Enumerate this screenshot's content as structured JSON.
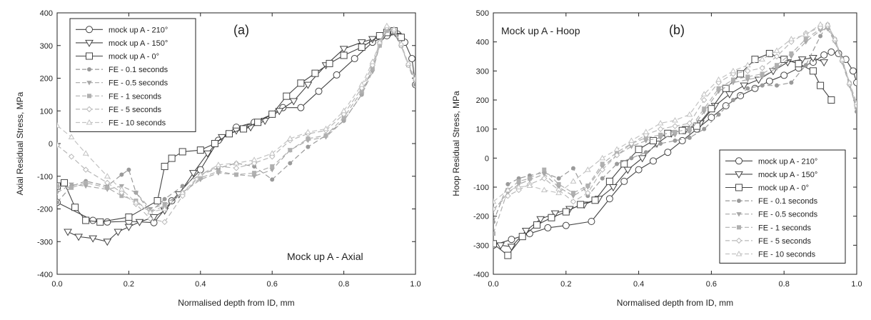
{
  "chart_data": [
    {
      "type": "line",
      "panel_label": "(a)",
      "annotation": "Mock up A - Axial",
      "xlabel": "Normalised depth from ID, mm",
      "ylabel": "Axial Residual Stress, MPa",
      "xlim": [
        0.0,
        1.0
      ],
      "ylim": [
        -400,
        400
      ],
      "xticks": [
        0.0,
        0.2,
        0.4,
        0.6,
        0.8,
        1.0
      ],
      "yticks": [
        -400,
        -300,
        -200,
        -100,
        0,
        100,
        200,
        300,
        400
      ],
      "legend_position": "top-left",
      "series": [
        {
          "name": "mock up A - 210°",
          "marker": "circle",
          "dash": false,
          "x": [
            0.0,
            0.1,
            0.14,
            0.2,
            0.27,
            0.32,
            0.4,
            0.45,
            0.5,
            0.55,
            0.6,
            0.63,
            0.68,
            0.73,
            0.78,
            0.83,
            0.88,
            0.92,
            0.95,
            0.97,
            0.99,
            1.0
          ],
          "y": [
            -180,
            -235,
            -240,
            -238,
            -242,
            -175,
            -80,
            10,
            50,
            65,
            90,
            110,
            110,
            160,
            210,
            260,
            310,
            330,
            335,
            310,
            260,
            180
          ]
        },
        {
          "name": "mock up A - 150°",
          "marker": "triangle-down",
          "dash": false,
          "x": [
            0.03,
            0.06,
            0.1,
            0.14,
            0.17,
            0.2,
            0.23,
            0.27,
            0.3,
            0.34,
            0.38,
            0.42,
            0.46,
            0.5,
            0.54,
            0.58,
            0.62,
            0.66,
            0.7,
            0.75,
            0.8,
            0.85,
            0.88,
            0.91,
            0.93,
            0.95
          ],
          "y": [
            -270,
            -285,
            -290,
            -300,
            -270,
            -255,
            -240,
            -225,
            -205,
            -155,
            -90,
            -30,
            20,
            40,
            50,
            70,
            100,
            130,
            180,
            240,
            290,
            310,
            320,
            330,
            340,
            330
          ]
        },
        {
          "name": "mock up A - 0°",
          "marker": "square",
          "dash": false,
          "x": [
            0.0,
            0.02,
            0.05,
            0.08,
            0.12,
            0.2,
            0.28,
            0.3,
            0.32,
            0.35,
            0.4,
            0.44,
            0.48,
            0.52,
            0.56,
            0.6,
            0.64,
            0.68,
            0.72,
            0.76,
            0.8,
            0.85,
            0.9,
            0.92,
            0.94,
            0.96
          ],
          "y": [
            -130,
            -120,
            -195,
            -235,
            -240,
            -225,
            -175,
            -70,
            -45,
            -25,
            -20,
            0,
            30,
            45,
            65,
            90,
            145,
            185,
            215,
            245,
            270,
            295,
            330,
            340,
            345,
            325
          ]
        },
        {
          "name": "FE - 0.1 seconds",
          "marker": "dot",
          "dash": true,
          "x": [
            0.0,
            0.04,
            0.08,
            0.14,
            0.18,
            0.2,
            0.22,
            0.26,
            0.3,
            0.35,
            0.4,
            0.45,
            0.5,
            0.55,
            0.6,
            0.65,
            0.7,
            0.75,
            0.8,
            0.85,
            0.88,
            0.9,
            0.92,
            0.94,
            0.96,
            0.98,
            1.0
          ],
          "y": [
            -180,
            -130,
            -115,
            -130,
            -95,
            -80,
            -150,
            -210,
            -170,
            -130,
            -95,
            -75,
            -60,
            -70,
            -110,
            -60,
            -10,
            25,
            70,
            150,
            230,
            300,
            350,
            340,
            300,
            240,
            180
          ]
        },
        {
          "name": "FE - 0.5 seconds",
          "marker": "triangle-down-filled",
          "dash": true,
          "x": [
            0.0,
            0.04,
            0.08,
            0.14,
            0.18,
            0.22,
            0.26,
            0.3,
            0.35,
            0.4,
            0.45,
            0.5,
            0.55,
            0.6,
            0.65,
            0.7,
            0.75,
            0.8,
            0.85,
            0.88,
            0.9,
            0.92,
            0.94,
            0.96,
            0.98,
            1.0
          ],
          "y": [
            -150,
            -125,
            -130,
            -140,
            -130,
            -150,
            -200,
            -185,
            -150,
            -110,
            -90,
            -95,
            -100,
            -80,
            -20,
            10,
            20,
            70,
            150,
            220,
            300,
            350,
            345,
            300,
            240,
            190
          ]
        },
        {
          "name": "FE - 1 seconds",
          "marker": "square-filled",
          "dash": true,
          "x": [
            0.0,
            0.04,
            0.08,
            0.14,
            0.18,
            0.22,
            0.26,
            0.3,
            0.35,
            0.4,
            0.45,
            0.5,
            0.55,
            0.6,
            0.65,
            0.7,
            0.75,
            0.8,
            0.85,
            0.88,
            0.9,
            0.92,
            0.94,
            0.96,
            0.98,
            1.0
          ],
          "y": [
            -130,
            -135,
            -120,
            -135,
            -160,
            -175,
            -210,
            -190,
            -150,
            -105,
            -85,
            -95,
            -90,
            -70,
            -20,
            15,
            25,
            80,
            160,
            230,
            300,
            345,
            345,
            300,
            240,
            195
          ]
        },
        {
          "name": "FE - 5 seconds",
          "marker": "diamond",
          "dash": true,
          "x": [
            0.0,
            0.04,
            0.08,
            0.14,
            0.18,
            0.22,
            0.26,
            0.3,
            0.35,
            0.4,
            0.45,
            0.5,
            0.55,
            0.6,
            0.65,
            0.7,
            0.75,
            0.8,
            0.85,
            0.88,
            0.9,
            0.92,
            0.94,
            0.96,
            0.98,
            1.0
          ],
          "y": [
            -5,
            -40,
            -80,
            -120,
            -150,
            -185,
            -230,
            -240,
            -160,
            -95,
            -70,
            -75,
            -60,
            -40,
            10,
            30,
            40,
            90,
            170,
            240,
            310,
            355,
            345,
            300,
            240,
            195
          ]
        },
        {
          "name": "FE - 10 seconds",
          "marker": "triangle-up",
          "dash": true,
          "x": [
            0.0,
            0.04,
            0.08,
            0.14,
            0.18,
            0.22,
            0.26,
            0.3,
            0.35,
            0.4,
            0.45,
            0.5,
            0.55,
            0.6,
            0.65,
            0.7,
            0.75,
            0.8,
            0.85,
            0.88,
            0.9,
            0.92,
            0.94,
            0.96,
            0.98,
            1.0
          ],
          "y": [
            55,
            20,
            -30,
            -100,
            -140,
            -180,
            -210,
            -200,
            -150,
            -95,
            -65,
            -60,
            -50,
            -30,
            15,
            35,
            45,
            100,
            180,
            250,
            310,
            360,
            350,
            305,
            245,
            200
          ]
        }
      ]
    },
    {
      "type": "line",
      "panel_label": "(b)",
      "annotation": "Mock up A - Hoop",
      "xlabel": "Normalised depth from ID, mm",
      "ylabel": "Hoop Residual Stress, MPa",
      "xlim": [
        0.0,
        1.0
      ],
      "ylim": [
        -400,
        500
      ],
      "xticks": [
        0.0,
        0.2,
        0.4,
        0.6,
        0.8,
        1.0
      ],
      "yticks": [
        -400,
        -300,
        -200,
        -100,
        0,
        100,
        200,
        300,
        400,
        500
      ],
      "legend_position": "bottom-right",
      "series": [
        {
          "name": "mock up A - 210°",
          "marker": "circle",
          "dash": false,
          "x": [
            0.0,
            0.05,
            0.1,
            0.15,
            0.2,
            0.27,
            0.32,
            0.36,
            0.4,
            0.44,
            0.48,
            0.52,
            0.56,
            0.6,
            0.64,
            0.68,
            0.72,
            0.76,
            0.8,
            0.84,
            0.88,
            0.91,
            0.93,
            0.95,
            0.97,
            0.99,
            1.0
          ],
          "y": [
            -300,
            -280,
            -260,
            -240,
            -232,
            -218,
            -140,
            -80,
            -40,
            -10,
            20,
            60,
            100,
            140,
            180,
            215,
            240,
            265,
            285,
            310,
            330,
            355,
            365,
            360,
            340,
            300,
            260
          ]
        },
        {
          "name": "mock up A - 150°",
          "marker": "triangle-down",
          "dash": false,
          "x": [
            0.02,
            0.05,
            0.09,
            0.13,
            0.17,
            0.21,
            0.25,
            0.29,
            0.33,
            0.37,
            0.41,
            0.45,
            0.49,
            0.53,
            0.57,
            0.61,
            0.65,
            0.69,
            0.73,
            0.77,
            0.81,
            0.85,
            0.88,
            0.91
          ],
          "y": [
            -300,
            -305,
            -250,
            -210,
            -190,
            -175,
            -160,
            -140,
            -100,
            -40,
            0,
            50,
            85,
            100,
            120,
            180,
            220,
            250,
            270,
            300,
            330,
            340,
            345,
            330
          ]
        },
        {
          "name": "mock up A - 0°",
          "marker": "square",
          "dash": false,
          "x": [
            0.0,
            0.04,
            0.08,
            0.12,
            0.16,
            0.2,
            0.24,
            0.28,
            0.32,
            0.36,
            0.4,
            0.44,
            0.48,
            0.52,
            0.56,
            0.6,
            0.64,
            0.68,
            0.72,
            0.76,
            0.8,
            0.84,
            0.88,
            0.9,
            0.93
          ],
          "y": [
            -295,
            -335,
            -270,
            -230,
            -205,
            -185,
            -160,
            -145,
            -80,
            -20,
            30,
            60,
            85,
            95,
            110,
            170,
            240,
            290,
            340,
            360,
            340,
            325,
            300,
            250,
            200
          ]
        },
        {
          "name": "FE - 0.1 seconds",
          "marker": "dot",
          "dash": true,
          "x": [
            0.0,
            0.04,
            0.07,
            0.1,
            0.14,
            0.18,
            0.22,
            0.26,
            0.3,
            0.34,
            0.38,
            0.42,
            0.46,
            0.5,
            0.54,
            0.58,
            0.62,
            0.66,
            0.7,
            0.74,
            0.78,
            0.82,
            0.86,
            0.9,
            0.92,
            0.94,
            0.96,
            0.98,
            1.0
          ],
          "y": [
            -220,
            -90,
            -70,
            -60,
            -50,
            -70,
            -35,
            -130,
            -70,
            -20,
            0,
            20,
            50,
            60,
            70,
            100,
            150,
            200,
            240,
            250,
            250,
            260,
            320,
            420,
            460,
            410,
            340,
            260,
            160
          ]
        },
        {
          "name": "FE - 0.5 seconds",
          "marker": "triangle-down-filled",
          "dash": true,
          "x": [
            0.0,
            0.04,
            0.07,
            0.1,
            0.14,
            0.18,
            0.22,
            0.26,
            0.3,
            0.34,
            0.38,
            0.42,
            0.46,
            0.5,
            0.54,
            0.58,
            0.62,
            0.66,
            0.7,
            0.74,
            0.78,
            0.82,
            0.86,
            0.9,
            0.92,
            0.94,
            0.96,
            0.98,
            1.0
          ],
          "y": [
            -180,
            -120,
            -90,
            -75,
            -55,
            -100,
            -130,
            -100,
            -30,
            10,
            40,
            60,
            70,
            80,
            90,
            160,
            230,
            260,
            270,
            280,
            310,
            350,
            400,
            440,
            445,
            400,
            330,
            250,
            170
          ]
        },
        {
          "name": "FE - 1 seconds",
          "marker": "square-filled",
          "dash": true,
          "x": [
            0.0,
            0.04,
            0.07,
            0.1,
            0.14,
            0.18,
            0.22,
            0.26,
            0.3,
            0.34,
            0.38,
            0.42,
            0.46,
            0.5,
            0.54,
            0.58,
            0.62,
            0.66,
            0.7,
            0.74,
            0.78,
            0.82,
            0.86,
            0.9,
            0.92,
            0.94,
            0.96,
            0.98,
            1.0
          ],
          "y": [
            -260,
            -110,
            -80,
            -70,
            -40,
            -90,
            -120,
            -95,
            -20,
            20,
            50,
            70,
            80,
            90,
            100,
            170,
            240,
            270,
            280,
            290,
            320,
            360,
            410,
            445,
            450,
            405,
            335,
            255,
            175
          ]
        },
        {
          "name": "FE - 5 seconds",
          "marker": "diamond",
          "dash": true,
          "x": [
            0.0,
            0.04,
            0.07,
            0.1,
            0.14,
            0.18,
            0.22,
            0.26,
            0.3,
            0.34,
            0.38,
            0.42,
            0.46,
            0.5,
            0.54,
            0.58,
            0.62,
            0.66,
            0.7,
            0.74,
            0.78,
            0.82,
            0.86,
            0.9,
            0.92,
            0.94,
            0.96,
            0.98,
            1.0
          ],
          "y": [
            -175,
            -130,
            -110,
            -90,
            -70,
            -110,
            -150,
            -120,
            -40,
            10,
            50,
            80,
            100,
            110,
            120,
            200,
            260,
            290,
            300,
            310,
            350,
            400,
            430,
            450,
            455,
            405,
            335,
            255,
            180
          ]
        },
        {
          "name": "FE - 10 seconds",
          "marker": "triangle-up",
          "dash": true,
          "x": [
            0.0,
            0.04,
            0.07,
            0.1,
            0.14,
            0.18,
            0.22,
            0.26,
            0.3,
            0.34,
            0.38,
            0.42,
            0.46,
            0.5,
            0.54,
            0.58,
            0.62,
            0.66,
            0.7,
            0.74,
            0.78,
            0.82,
            0.86,
            0.9,
            0.92,
            0.94,
            0.96,
            0.98,
            1.0
          ],
          "y": [
            -150,
            -110,
            -100,
            -95,
            -110,
            -120,
            -80,
            -40,
            0,
            30,
            60,
            90,
            120,
            130,
            150,
            220,
            270,
            300,
            320,
            340,
            370,
            410,
            425,
            460,
            460,
            410,
            340,
            260,
            190
          ]
        }
      ]
    }
  ]
}
